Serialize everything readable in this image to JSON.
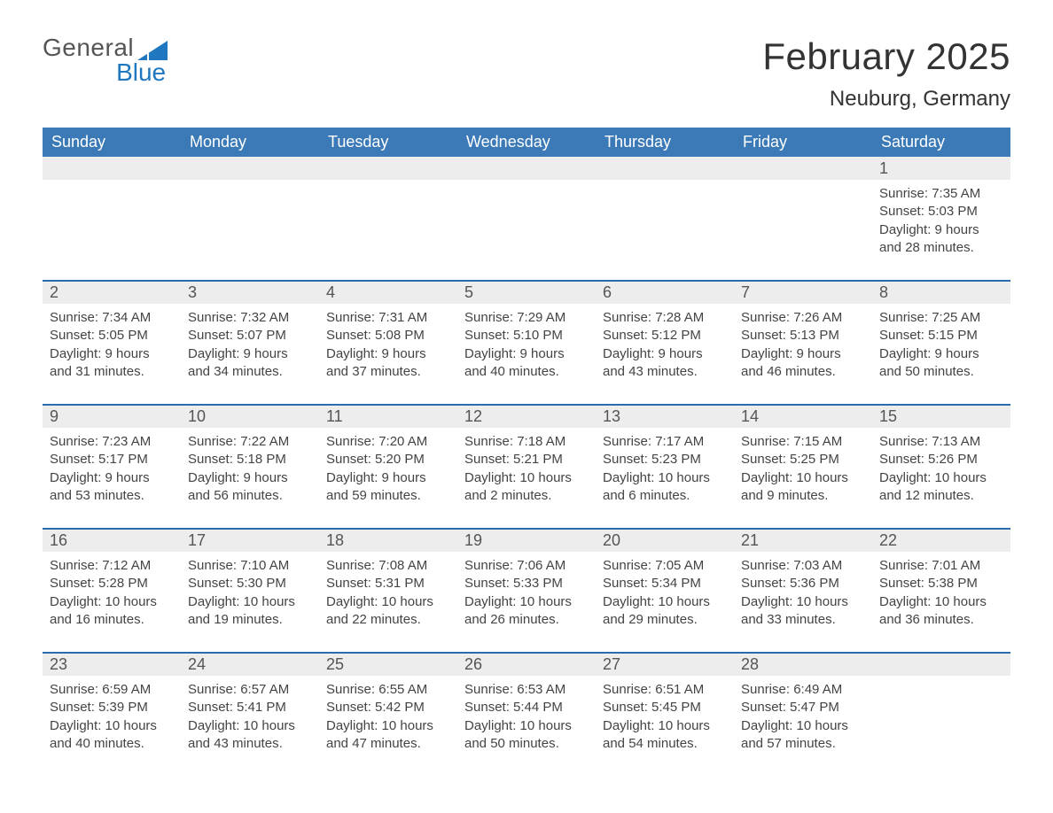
{
  "brand": {
    "line1": "General",
    "line2": "Blue"
  },
  "title": "February 2025",
  "location": "Neuburg, Germany",
  "colors": {
    "header_blue": "#3b79b7",
    "accent_blue": "#2a6cb0",
    "row_gray": "#ededed",
    "logo_blue": "#1f77c0",
    "background": "#ffffff",
    "text": "#333333"
  },
  "day_headers": [
    "Sunday",
    "Monday",
    "Tuesday",
    "Wednesday",
    "Thursday",
    "Friday",
    "Saturday"
  ],
  "calendar": {
    "type": "table",
    "columns": 7,
    "weeks": [
      [
        null,
        null,
        null,
        null,
        null,
        null,
        {
          "n": "1",
          "sunrise": "7:35 AM",
          "sunset": "5:03 PM",
          "daylight": "9 hours and 28 minutes."
        }
      ],
      [
        {
          "n": "2",
          "sunrise": "7:34 AM",
          "sunset": "5:05 PM",
          "daylight": "9 hours and 31 minutes."
        },
        {
          "n": "3",
          "sunrise": "7:32 AM",
          "sunset": "5:07 PM",
          "daylight": "9 hours and 34 minutes."
        },
        {
          "n": "4",
          "sunrise": "7:31 AM",
          "sunset": "5:08 PM",
          "daylight": "9 hours and 37 minutes."
        },
        {
          "n": "5",
          "sunrise": "7:29 AM",
          "sunset": "5:10 PM",
          "daylight": "9 hours and 40 minutes."
        },
        {
          "n": "6",
          "sunrise": "7:28 AM",
          "sunset": "5:12 PM",
          "daylight": "9 hours and 43 minutes."
        },
        {
          "n": "7",
          "sunrise": "7:26 AM",
          "sunset": "5:13 PM",
          "daylight": "9 hours and 46 minutes."
        },
        {
          "n": "8",
          "sunrise": "7:25 AM",
          "sunset": "5:15 PM",
          "daylight": "9 hours and 50 minutes."
        }
      ],
      [
        {
          "n": "9",
          "sunrise": "7:23 AM",
          "sunset": "5:17 PM",
          "daylight": "9 hours and 53 minutes."
        },
        {
          "n": "10",
          "sunrise": "7:22 AM",
          "sunset": "5:18 PM",
          "daylight": "9 hours and 56 minutes."
        },
        {
          "n": "11",
          "sunrise": "7:20 AM",
          "sunset": "5:20 PM",
          "daylight": "9 hours and 59 minutes."
        },
        {
          "n": "12",
          "sunrise": "7:18 AM",
          "sunset": "5:21 PM",
          "daylight": "10 hours and 2 minutes."
        },
        {
          "n": "13",
          "sunrise": "7:17 AM",
          "sunset": "5:23 PM",
          "daylight": "10 hours and 6 minutes."
        },
        {
          "n": "14",
          "sunrise": "7:15 AM",
          "sunset": "5:25 PM",
          "daylight": "10 hours and 9 minutes."
        },
        {
          "n": "15",
          "sunrise": "7:13 AM",
          "sunset": "5:26 PM",
          "daylight": "10 hours and 12 minutes."
        }
      ],
      [
        {
          "n": "16",
          "sunrise": "7:12 AM",
          "sunset": "5:28 PM",
          "daylight": "10 hours and 16 minutes."
        },
        {
          "n": "17",
          "sunrise": "7:10 AM",
          "sunset": "5:30 PM",
          "daylight": "10 hours and 19 minutes."
        },
        {
          "n": "18",
          "sunrise": "7:08 AM",
          "sunset": "5:31 PM",
          "daylight": "10 hours and 22 minutes."
        },
        {
          "n": "19",
          "sunrise": "7:06 AM",
          "sunset": "5:33 PM",
          "daylight": "10 hours and 26 minutes."
        },
        {
          "n": "20",
          "sunrise": "7:05 AM",
          "sunset": "5:34 PM",
          "daylight": "10 hours and 29 minutes."
        },
        {
          "n": "21",
          "sunrise": "7:03 AM",
          "sunset": "5:36 PM",
          "daylight": "10 hours and 33 minutes."
        },
        {
          "n": "22",
          "sunrise": "7:01 AM",
          "sunset": "5:38 PM",
          "daylight": "10 hours and 36 minutes."
        }
      ],
      [
        {
          "n": "23",
          "sunrise": "6:59 AM",
          "sunset": "5:39 PM",
          "daylight": "10 hours and 40 minutes."
        },
        {
          "n": "24",
          "sunrise": "6:57 AM",
          "sunset": "5:41 PM",
          "daylight": "10 hours and 43 minutes."
        },
        {
          "n": "25",
          "sunrise": "6:55 AM",
          "sunset": "5:42 PM",
          "daylight": "10 hours and 47 minutes."
        },
        {
          "n": "26",
          "sunrise": "6:53 AM",
          "sunset": "5:44 PM",
          "daylight": "10 hours and 50 minutes."
        },
        {
          "n": "27",
          "sunrise": "6:51 AM",
          "sunset": "5:45 PM",
          "daylight": "10 hours and 54 minutes."
        },
        {
          "n": "28",
          "sunrise": "6:49 AM",
          "sunset": "5:47 PM",
          "daylight": "10 hours and 57 minutes."
        },
        null
      ]
    ]
  },
  "labels": {
    "sunrise": "Sunrise: ",
    "sunset": "Sunset: ",
    "daylight": "Daylight: "
  }
}
